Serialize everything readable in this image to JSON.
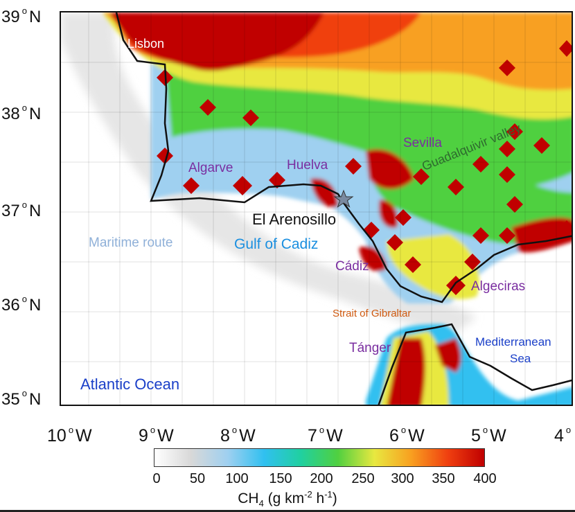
{
  "axes": {
    "lat_labels": [
      {
        "value": "39",
        "hemi": "N"
      },
      {
        "value": "38",
        "hemi": "N"
      },
      {
        "value": "37",
        "hemi": "N"
      },
      {
        "value": "36",
        "hemi": "N"
      },
      {
        "value": "35",
        "hemi": "N"
      }
    ],
    "lon_labels": [
      {
        "value": "10",
        "hemi": "W"
      },
      {
        "value": "9",
        "hemi": "W"
      },
      {
        "value": "8",
        "hemi": "W"
      },
      {
        "value": "7",
        "hemi": "W"
      },
      {
        "value": "6",
        "hemi": "W"
      },
      {
        "value": "5",
        "hemi": "W"
      },
      {
        "value": "4",
        "hemi": ""
      }
    ],
    "degree_symbol": "o"
  },
  "labels": {
    "lisbon": "Lisbon",
    "algarve": "Algarve",
    "huelva": "Huelva",
    "sevilla": "Sevilla",
    "guadalquivir": "Guadalquivir valley",
    "el_arenosillo": "El Arenosillo",
    "maritime_route": "Maritime route",
    "gulf_of_cadiz": "Gulf of Cadiz",
    "cadiz": "Cádiz",
    "algeciras": "Algeciras",
    "strait": "Strait of Gibraltar",
    "tanger": "Tánger",
    "mediterranean_1": "Mediterranean",
    "mediterranean_2": "Sea",
    "atlantic": "Atlantic Ocean"
  },
  "label_colors": {
    "city": "#7a2ea0",
    "lisbon": "#ffffff",
    "station": "#111111",
    "route": "#8fb0d8",
    "gulf": "#1a8fe0",
    "strait": "#d05a10",
    "sea": "#1a3fc8",
    "valley": "#2e6b2e"
  },
  "colorbar": {
    "ticks": [
      "0",
      "50",
      "100",
      "150",
      "200",
      "250",
      "300",
      "350",
      "400"
    ],
    "label_prefix": "CH",
    "label_sub": "4",
    "label_unit_1": " (g km",
    "label_exp_1": "-2",
    "label_unit_2": " h",
    "label_exp_2": "-1",
    "label_close": ")",
    "colors": [
      "#ffffff",
      "#d8d8d8",
      "#9fd0f0",
      "#30c0f0",
      "#20d0a0",
      "#50d040",
      "#e8e840",
      "#f8a020",
      "#f04010",
      "#c00000"
    ]
  },
  "markers": {
    "station_icon": "star-icon"
  }
}
